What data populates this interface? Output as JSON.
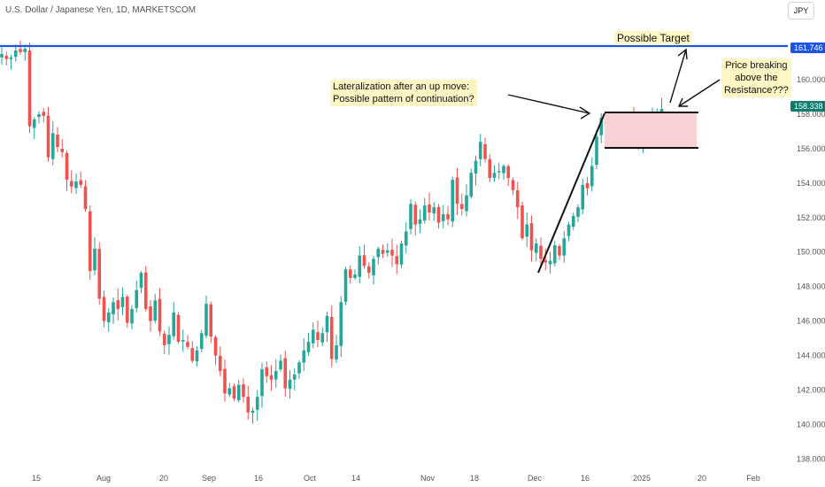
{
  "header": {
    "symbol_title": "U.S. Dollar / Japanese Yen, 1D, MARKETSCOM",
    "currency_button": "JPY"
  },
  "annotations": {
    "possible_target": "Possible Target",
    "lateralization_line1": "Lateralization after an up move:",
    "lateralization_line2": "Possible pattern of continuation?",
    "breaking_line1": "Price breaking",
    "breaking_line2": "above the",
    "breaking_line3": "Resistance???"
  },
  "price_tags": {
    "resistance": "161.746",
    "last": "158.338"
  },
  "colors": {
    "up": "#26a69a",
    "down": "#ef5350",
    "resistance_line": "#1e54e6",
    "last_price": "#0a7d6e",
    "box_fill": "#f9d2d6",
    "note_bg": "#fff6c6"
  },
  "chart_data": {
    "type": "candlestick",
    "title": "U.S. Dollar / Japanese Yen, 1D, MARKETSCOM",
    "y_axis": {
      "ticks": [
        138.0,
        140.0,
        142.0,
        144.0,
        146.0,
        148.0,
        150.0,
        152.0,
        154.0,
        156.0,
        158.0,
        160.0
      ],
      "range": [
        137.4,
        163.6
      ]
    },
    "x_axis": {
      "ticks": [
        "15",
        "Aug",
        "20",
        "Sep",
        "16",
        "Oct",
        "14",
        "Nov",
        "18",
        "Dec",
        "16",
        "2025",
        "20",
        "Feb"
      ]
    },
    "grid": false,
    "close": [
      161.5,
      161.2,
      161.3,
      161.7,
      161.6,
      161.8,
      157.3,
      157.7,
      158.0,
      157.9,
      155.5,
      156.9,
      156.1,
      155.8,
      154.2,
      153.8,
      154.1,
      153.9,
      152.5,
      148.9,
      150.2,
      147.3,
      146.0,
      146.5,
      147.1,
      146.7,
      147.4,
      145.9,
      146.7,
      147.8,
      148.8,
      146.7,
      146.0,
      147.2,
      145.4,
      144.6,
      145.2,
      146.5,
      144.8,
      144.9,
      144.5,
      143.7,
      144.3,
      145.3,
      147.0,
      145.1,
      144.0,
      143.1,
      141.8,
      142.1,
      141.5,
      142.3,
      141.6,
      140.7,
      140.8,
      141.6,
      143.2,
      142.8,
      142.6,
      143.1,
      143.7,
      142.1,
      142.6,
      142.9,
      143.6,
      144.3,
      144.8,
      145.5,
      144.9,
      145.3,
      146.3,
      143.8,
      144.6,
      147.1,
      149.0,
      148.5,
      148.7,
      149.8,
      149.2,
      148.8,
      149.6,
      150.2,
      149.9,
      150.1,
      149.8,
      149.3,
      150.5,
      151.2,
      152.8,
      151.6,
      151.9,
      152.7,
      152.3,
      152.6,
      151.7,
      152.2,
      151.9,
      154.2,
      152.8,
      152.5,
      153.3,
      154.6,
      155.3,
      156.4,
      155.4,
      154.3,
      154.6,
      154.7,
      155.0,
      154.3,
      153.6,
      152.6,
      150.8,
      151.6,
      150.1,
      150.5,
      149.6,
      149.4,
      149.5,
      150.4,
      149.8,
      150.8,
      151.6,
      152.1,
      152.6,
      153.9,
      153.7,
      155.0,
      156.7,
      157.8,
      157.4,
      156.8,
      157.2,
      157.5,
      157.0,
      157.9,
      157.3,
      156.3,
      157.5,
      157.1,
      157.7,
      158.1,
      158.3
    ]
  }
}
